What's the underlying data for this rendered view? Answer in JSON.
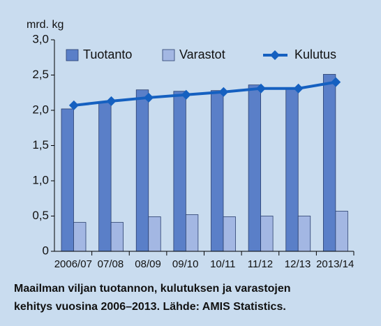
{
  "chart_data": {
    "type": "bar",
    "y_axis_label": "mrd. kg",
    "categories": [
      "2006/07",
      "07/08",
      "08/09",
      "09/10",
      "10/11",
      "11/12",
      "12/13",
      "2013/14"
    ],
    "series": [
      {
        "name": "Tuotanto",
        "color": "#5a7fc8",
        "type": "bar",
        "values": [
          2.02,
          2.12,
          2.29,
          2.27,
          2.28,
          2.36,
          2.32,
          2.51
        ]
      },
      {
        "name": "Varastot",
        "color": "#a3b7e3",
        "type": "bar",
        "values": [
          0.41,
          0.41,
          0.49,
          0.52,
          0.49,
          0.5,
          0.5,
          0.57
        ]
      },
      {
        "name": "Kulutus",
        "color": "#1560c0",
        "type": "line",
        "values": [
          2.07,
          2.13,
          2.18,
          2.22,
          2.26,
          2.31,
          2.31,
          2.4
        ]
      }
    ],
    "ylim": [
      0,
      3
    ],
    "yticks": [
      0,
      {
        "value": 0.5,
        "label": "0,5"
      },
      {
        "value": 1,
        "label": "1,0"
      },
      {
        "value": 1.5,
        "label": "1,5"
      },
      {
        "value": 2,
        "label": "2,0"
      },
      {
        "value": 2.5,
        "label": "2,5"
      },
      {
        "value": 3,
        "label": "3,0"
      }
    ],
    "legend": "top",
    "caption": [
      "Maailman viljan tuotannon, kulutuksen ja varastojen",
      "kehitys vuosina 2006–2013. Lähde: AMIS Statistics."
    ]
  }
}
